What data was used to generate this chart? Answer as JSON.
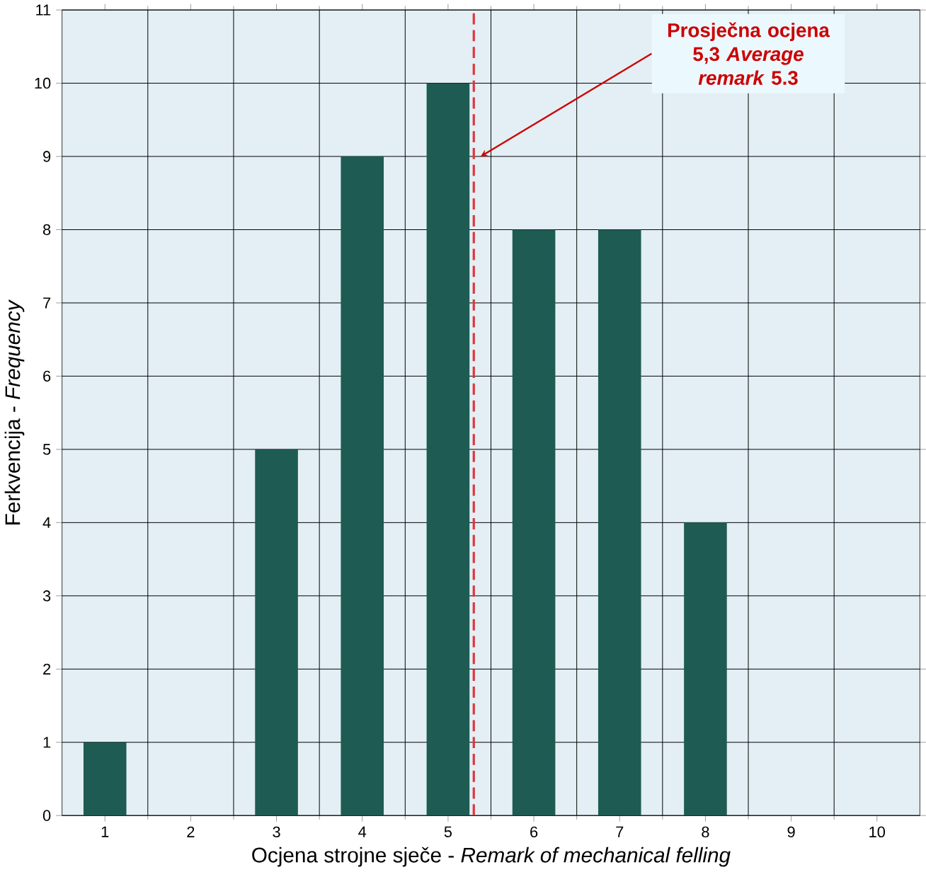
{
  "chart_data": {
    "type": "bar",
    "xlabel": "Ocjena strojne sječe - *Remark of mechanical felling*",
    "ylabel": "Ferkvencija - *Frequency*",
    "x": [
      1,
      2,
      3,
      4,
      5,
      6,
      7,
      8,
      9,
      10
    ],
    "values": [
      1,
      0,
      5,
      9,
      10,
      8,
      8,
      4,
      0,
      0
    ],
    "color": "#1e5b52",
    "xlim": [
      0.5,
      10.5
    ],
    "xticks": [
      1,
      2,
      3,
      4,
      5,
      6,
      7,
      8,
      9,
      10
    ],
    "ylim": [
      0,
      11
    ],
    "yticks": [
      0,
      1,
      2,
      3,
      4,
      5,
      6,
      7,
      8,
      9,
      10,
      11
    ],
    "grid": true,
    "ref_lines": [
      {
        "axis": "x",
        "value": 5.3,
        "label": null,
        "color": "#e0343c",
        "line_style": "dashed"
      }
    ],
    "annotations": [
      {
        "text": "Prosječna ocjena 5,3 *Average remark* 5.3",
        "x": 5.3,
        "y": 9
      }
    ]
  }
}
